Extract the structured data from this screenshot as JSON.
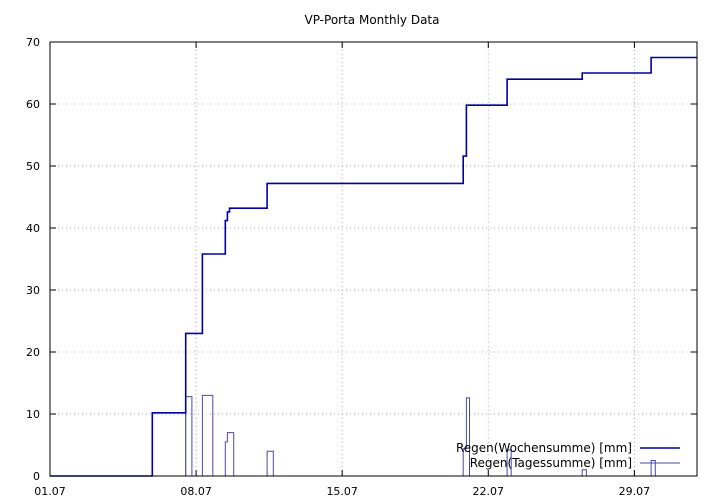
{
  "chart_data": {
    "type": "line",
    "title": "VP-Porta Monthly Data",
    "xlabel": "",
    "ylabel": "",
    "xlim": [
      0,
      31
    ],
    "ylim": [
      0,
      70
    ],
    "grid": true,
    "legend_position": "bottom-right",
    "x_ticks": [
      {
        "value": 0,
        "label": "01.07"
      },
      {
        "value": 7,
        "label": "08.07"
      },
      {
        "value": 14,
        "label": "15.07"
      },
      {
        "value": 21,
        "label": "22.07"
      },
      {
        "value": 28,
        "label": "29.07"
      }
    ],
    "y_ticks": [
      0,
      10,
      20,
      30,
      40,
      50,
      60,
      70
    ],
    "series": [
      {
        "name": "Regen(Wochensumme) [mm]",
        "color": "#0000a0",
        "style": "step",
        "points": [
          [
            0,
            0
          ],
          [
            4.9,
            0
          ],
          [
            4.9,
            10.2
          ],
          [
            6.5,
            10.2
          ],
          [
            6.5,
            23
          ],
          [
            7.3,
            23
          ],
          [
            7.3,
            35.8
          ],
          [
            8.4,
            35.8
          ],
          [
            8.4,
            41.2
          ],
          [
            8.5,
            41.2
          ],
          [
            8.5,
            42.6
          ],
          [
            8.6,
            42.6
          ],
          [
            8.6,
            43.2
          ],
          [
            10.4,
            43.2
          ],
          [
            10.4,
            47.2
          ],
          [
            19.8,
            47.2
          ],
          [
            19.8,
            51.6
          ],
          [
            19.95,
            51.6
          ],
          [
            19.95,
            59.8
          ],
          [
            21.9,
            59.8
          ],
          [
            21.9,
            64
          ],
          [
            25.5,
            64
          ],
          [
            25.5,
            65
          ],
          [
            28.8,
            65
          ],
          [
            28.8,
            67.5
          ],
          [
            31,
            67.5
          ]
        ]
      },
      {
        "name": "Regen(Tagessumme) [mm]",
        "color": "#4a4aa8",
        "style": "step",
        "segments": [
          [
            [
              4.9,
              0
            ],
            [
              4.9,
              10.2
            ],
            [
              6.5,
              10.2
            ],
            [
              6.5,
              0
            ]
          ],
          [
            [
              6.5,
              0
            ],
            [
              6.5,
              12.8
            ],
            [
              6.8,
              12.8
            ],
            [
              6.8,
              0
            ]
          ],
          [
            [
              7.3,
              0
            ],
            [
              7.3,
              13
            ],
            [
              7.8,
              13
            ],
            [
              7.8,
              0
            ]
          ],
          [
            [
              8.4,
              0
            ],
            [
              8.4,
              5.5
            ],
            [
              8.5,
              5.5
            ],
            [
              8.5,
              7
            ],
            [
              8.8,
              7
            ],
            [
              8.8,
              0
            ]
          ],
          [
            [
              10.4,
              0
            ],
            [
              10.4,
              4
            ],
            [
              10.7,
              4
            ],
            [
              10.7,
              0
            ]
          ],
          [
            [
              19.8,
              0
            ],
            [
              19.8,
              4.4
            ],
            [
              19.95,
              4.4
            ],
            [
              19.95,
              12.6
            ],
            [
              20.1,
              12.6
            ],
            [
              20.1,
              0
            ]
          ],
          [
            [
              21.9,
              0
            ],
            [
              21.9,
              4.2
            ],
            [
              22.1,
              4.2
            ],
            [
              22.1,
              0
            ]
          ],
          [
            [
              25.5,
              0
            ],
            [
              25.5,
              1
            ],
            [
              25.7,
              1
            ],
            [
              25.7,
              0
            ]
          ],
          [
            [
              28.8,
              0
            ],
            [
              28.8,
              2.5
            ],
            [
              29,
              2.5
            ],
            [
              29,
              0
            ]
          ]
        ]
      }
    ]
  }
}
